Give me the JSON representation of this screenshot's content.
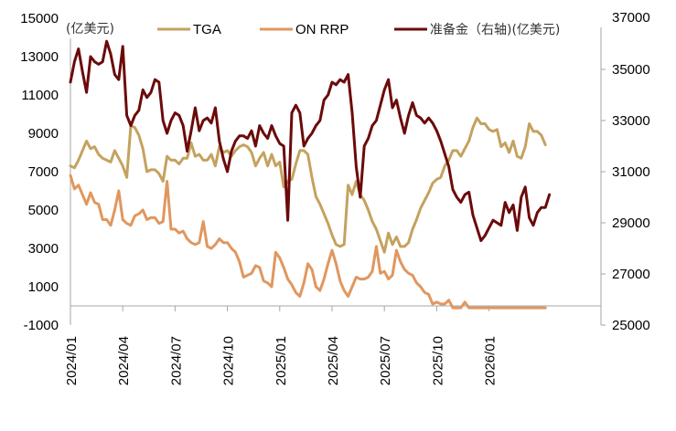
{
  "chart_data": {
    "type": "line",
    "title": "",
    "left_unit_label": "(亿美元)",
    "xlabel": "",
    "ylabel": "",
    "y_left": {
      "min": -1000,
      "max": 15000,
      "ticks": [
        "15000",
        "13000",
        "11000",
        "9000",
        "7000",
        "5000",
        "3000",
        "1000",
        "-1000"
      ],
      "tick_values": [
        15000,
        13000,
        11000,
        9000,
        7000,
        5000,
        3000,
        1000,
        -1000
      ]
    },
    "y_right": {
      "min": 25000,
      "max": 37000,
      "ticks": [
        "37000",
        "35000",
        "33000",
        "31000",
        "29000",
        "27000",
        "25000"
      ],
      "tick_values": [
        37000,
        35000,
        33000,
        31000,
        29000,
        27000,
        25000
      ]
    },
    "x_ticks": [
      "2024/01",
      "2024/04",
      "2024/07",
      "2024/10",
      "2025/01",
      "2025/04",
      "2025/07",
      "2025/10",
      "2026/01"
    ],
    "x_start": "2024/01",
    "weeks_per_quarter": 13,
    "grid": false,
    "legend": "top",
    "series": [
      {
        "name": "TGA",
        "axis": "left",
        "color": "#c4a25f",
        "values": [
          7300,
          7200,
          7600,
          8100,
          8600,
          8200,
          8300,
          7900,
          7700,
          7600,
          7500,
          8100,
          7700,
          7300,
          6700,
          9400,
          9300,
          8900,
          8200,
          7000,
          7100,
          7100,
          6900,
          6500,
          7800,
          7600,
          7600,
          7400,
          7700,
          7700,
          8500,
          7800,
          7900,
          7600,
          7600,
          7900,
          7300,
          8300,
          8000,
          8100,
          7800,
          8100,
          8300,
          8400,
          8300,
          8000,
          7300,
          7700,
          8000,
          7300,
          7900,
          7300,
          7500,
          6200,
          6500,
          6600,
          7400,
          8100,
          8100,
          7900,
          6700,
          5700,
          5300,
          4800,
          4300,
          3700,
          3200,
          3100,
          3200,
          6300,
          5800,
          6500,
          5800,
          5500,
          5000,
          4400,
          4000,
          3400,
          2800,
          3800,
          3200,
          3600,
          3100,
          3100,
          3300,
          4000,
          4500,
          5100,
          5500,
          5900,
          6400,
          6600,
          6700,
          7300,
          7600,
          8100,
          8100,
          7800,
          8200,
          8600,
          9300,
          9800,
          9500,
          9500,
          9200,
          9100,
          9200,
          8300,
          8500,
          8000,
          8600,
          7800,
          7700,
          8300,
          9500,
          9100,
          9100,
          8900,
          8400
        ]
      },
      {
        "name": "ON RRP",
        "axis": "left",
        "color": "#e0975f",
        "values": [
          6800,
          6100,
          6300,
          5800,
          5300,
          5900,
          5400,
          5300,
          4500,
          4500,
          4200,
          5000,
          6000,
          4500,
          4300,
          4200,
          4700,
          4800,
          5000,
          4500,
          4600,
          4600,
          4300,
          4400,
          6500,
          4000,
          4000,
          3800,
          3900,
          3500,
          3300,
          3200,
          3300,
          4400,
          3100,
          3000,
          3200,
          3500,
          3300,
          3300,
          3000,
          2800,
          2300,
          1500,
          1600,
          1700,
          2100,
          2000,
          1300,
          1200,
          1000,
          2800,
          2500,
          2000,
          1400,
          1100,
          700,
          500,
          1200,
          2200,
          1900,
          1000,
          800,
          1400,
          2200,
          2900,
          2200,
          1300,
          800,
          500,
          1000,
          1500,
          1400,
          1400,
          1500,
          1800,
          3100,
          1700,
          1800,
          1400,
          1600,
          2900,
          2300,
          1900,
          1700,
          1600,
          1200,
          1000,
          700,
          600,
          100,
          200,
          100,
          100,
          300,
          -100,
          -100,
          -100,
          200,
          -100,
          -100,
          -100,
          -100,
          -100,
          -100,
          -100,
          -100,
          -100,
          -100,
          -100,
          -100,
          -100,
          -100,
          -100,
          -100,
          -100,
          -100,
          -100,
          -100
        ]
      },
      {
        "name": "准备金（右轴)(亿美元)",
        "axis": "right",
        "color": "#6b0a0a",
        "values": [
          34500,
          35300,
          35800,
          34900,
          34100,
          35500,
          35300,
          35200,
          35300,
          36100,
          35600,
          34800,
          34600,
          35900,
          33200,
          32800,
          33200,
          33400,
          34200,
          33900,
          34100,
          34600,
          34500,
          33000,
          32500,
          33000,
          33300,
          33200,
          32800,
          31800,
          32600,
          33500,
          32600,
          33000,
          33100,
          32900,
          33500,
          32200,
          31500,
          31000,
          31800,
          32200,
          32400,
          32400,
          32300,
          32600,
          32000,
          32800,
          32500,
          32300,
          32800,
          32400,
          32100,
          32000,
          29100,
          33300,
          33600,
          33300,
          32000,
          32300,
          32500,
          32800,
          33000,
          33800,
          34000,
          34500,
          34400,
          34600,
          34500,
          34800,
          33300,
          31200,
          30000,
          32000,
          32300,
          32800,
          33000,
          33600,
          34200,
          34600,
          33500,
          33800,
          33100,
          32500,
          33200,
          33700,
          33200,
          33100,
          32900,
          33100,
          32900,
          32600,
          32200,
          31700,
          31200,
          30300,
          30000,
          29800,
          30100,
          30200,
          29300,
          28800,
          28300,
          28500,
          28800,
          29100,
          29000,
          28900,
          29800,
          29400,
          29700,
          28700,
          30000,
          30400,
          29200,
          28900,
          29400,
          29600,
          29600,
          30100
        ]
      }
    ]
  },
  "legend": {
    "items": [
      {
        "label": "TGA",
        "color": "#c4a25f"
      },
      {
        "label": "ON RRP",
        "color": "#e0975f"
      },
      {
        "label": "准备金（右轴)(亿美元)",
        "color": "#6b0a0a"
      }
    ]
  }
}
